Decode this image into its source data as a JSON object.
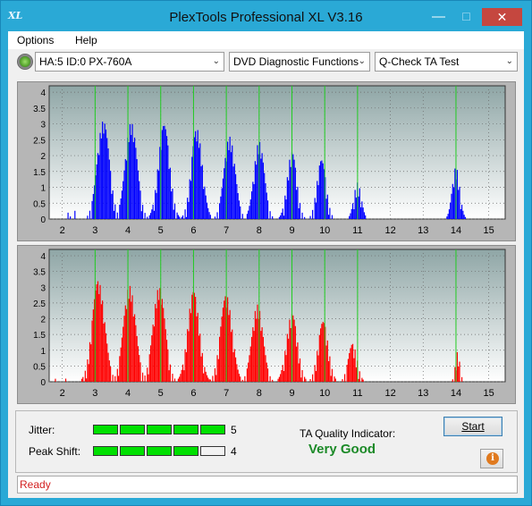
{
  "window": {
    "title": "PlexTools Professional XL V3.16",
    "app_icon_text": "XL",
    "minimize_glyph": "—",
    "maximize_glyph": "☐",
    "close_glyph": "✕"
  },
  "menu": {
    "items": [
      "Options",
      "Help"
    ]
  },
  "toolbar": {
    "drive": "HA:5 ID:0  PX-760A",
    "function": "DVD Diagnostic Functions",
    "test": "Q-Check TA Test",
    "arrow": "⌄"
  },
  "chart_data": [
    {
      "type": "bar",
      "color": "#0000ff",
      "x_ticks": [
        2,
        3,
        4,
        5,
        6,
        7,
        8,
        9,
        10,
        11,
        12,
        13,
        14,
        15
      ],
      "y_ticks": [
        0,
        0.5,
        1,
        1.5,
        2,
        2.5,
        3,
        3.5,
        4
      ],
      "xlim": [
        1.6,
        15.5
      ],
      "ylim": [
        0,
        4.2
      ],
      "marker_lines": [
        3,
        4,
        5,
        6,
        7,
        8,
        9,
        10,
        11,
        14
      ],
      "peaks": [
        {
          "x": 2.2,
          "height": 0.3,
          "width": 0.05
        },
        {
          "x": 2.4,
          "height": 0.3,
          "width": 0.05
        },
        {
          "x": 3.25,
          "height": 3.1,
          "width": 0.33
        },
        {
          "x": 4.1,
          "height": 3.05,
          "width": 0.32
        },
        {
          "x": 5.1,
          "height": 2.95,
          "width": 0.31
        },
        {
          "x": 6.1,
          "height": 2.85,
          "width": 0.3
        },
        {
          "x": 7.1,
          "height": 2.6,
          "width": 0.3
        },
        {
          "x": 8.0,
          "height": 2.45,
          "width": 0.28
        },
        {
          "x": 9.0,
          "height": 2.1,
          "width": 0.26
        },
        {
          "x": 9.9,
          "height": 1.85,
          "width": 0.25
        },
        {
          "x": 11.0,
          "height": 1.15,
          "width": 0.2
        },
        {
          "x": 14.0,
          "height": 1.65,
          "width": 0.2
        }
      ]
    },
    {
      "type": "bar",
      "color": "#ff0000",
      "x_ticks": [
        2,
        3,
        4,
        5,
        6,
        7,
        8,
        9,
        10,
        11,
        12,
        13,
        14,
        15
      ],
      "y_ticks": [
        0,
        0.5,
        1,
        1.5,
        2,
        2.5,
        3,
        3.5,
        4
      ],
      "xlim": [
        1.6,
        15.5
      ],
      "ylim": [
        0,
        4.2
      ],
      "marker_lines": [
        3,
        4,
        5,
        6,
        7,
        8,
        9,
        10,
        11,
        14
      ],
      "peaks": [
        {
          "x": 1.8,
          "height": 0.1,
          "width": 0.06
        },
        {
          "x": 2.1,
          "height": 0.1,
          "width": 0.05
        },
        {
          "x": 3.1,
          "height": 3.2,
          "width": 0.34
        },
        {
          "x": 4.05,
          "height": 3.05,
          "width": 0.33
        },
        {
          "x": 4.95,
          "height": 3.0,
          "width": 0.33
        },
        {
          "x": 6.0,
          "height": 2.85,
          "width": 0.32
        },
        {
          "x": 7.0,
          "height": 2.75,
          "width": 0.32
        },
        {
          "x": 7.95,
          "height": 2.45,
          "width": 0.3
        },
        {
          "x": 9.0,
          "height": 2.15,
          "width": 0.3
        },
        {
          "x": 9.95,
          "height": 1.9,
          "width": 0.28
        },
        {
          "x": 10.85,
          "height": 1.2,
          "width": 0.24
        },
        {
          "x": 14.05,
          "height": 0.95,
          "width": 0.12
        }
      ]
    }
  ],
  "metrics": {
    "jitter_label": "Jitter:",
    "jitter_value": "5",
    "jitter_level": 5,
    "peak_shift_label": "Peak Shift:",
    "peak_shift_value": "4",
    "peak_shift_level": 4,
    "segments_total": 5,
    "filled_color": "#00e000",
    "empty_color": "#f2f2f2"
  },
  "quality": {
    "title": "TA Quality Indicator:",
    "value": "Very Good"
  },
  "buttons": {
    "start": "Start",
    "info": "i"
  },
  "status": {
    "text": "Ready"
  }
}
